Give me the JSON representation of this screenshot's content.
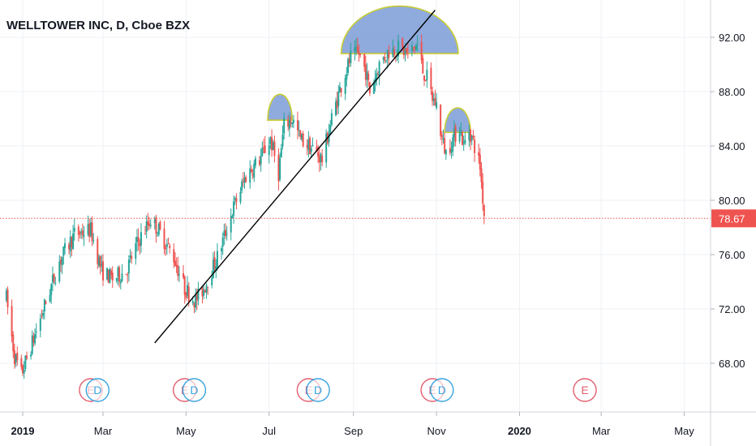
{
  "title": "WELLTOWER INC, D, Cboe BZX",
  "colors": {
    "up": "#26a69a",
    "down": "#ef5350",
    "pattern_fill": "#7b9bd6",
    "pattern_stroke": "#c9cc34",
    "trendline": "#000000",
    "last_price": "#ef5350",
    "earnings": "#e35f6f",
    "dividend": "#3aa3e0",
    "grid": "#eef0f4"
  },
  "chart_data": {
    "type": "candlestick",
    "y_ticks": [
      "68.00",
      "72.00",
      "76.00",
      "80.00",
      "84.00",
      "88.00",
      "92.00"
    ],
    "ylim": [
      64.0,
      95.5
    ],
    "x_ticks": [
      {
        "label": "2019",
        "date": "2019-01-01",
        "bold": true
      },
      {
        "label": "Mar",
        "date": "2019-03-01",
        "bold": false
      },
      {
        "label": "May",
        "date": "2019-05-01",
        "bold": false
      },
      {
        "label": "Jul",
        "date": "2019-07-01",
        "bold": false
      },
      {
        "label": "Sep",
        "date": "2019-09-01",
        "bold": false
      },
      {
        "label": "Nov",
        "date": "2019-11-01",
        "bold": false
      },
      {
        "label": "2020",
        "date": "2020-01-01",
        "bold": true
      },
      {
        "label": "Mar",
        "date": "2020-03-01",
        "bold": false
      },
      {
        "label": "May",
        "date": "2020-05-01",
        "bold": false
      }
    ],
    "price_path": [
      [
        "2018-12-20",
        72.8
      ],
      [
        "2018-12-26",
        68.5
      ],
      [
        "2018-12-31",
        67.2
      ],
      [
        "2019-01-08",
        69.5
      ],
      [
        "2019-01-18",
        72.5
      ],
      [
        "2019-01-28",
        75.5
      ],
      [
        "2019-02-08",
        77.5
      ],
      [
        "2019-02-20",
        77.8
      ],
      [
        "2019-02-28",
        74.8
      ],
      [
        "2019-03-08",
        74.2
      ],
      [
        "2019-03-18",
        74.8
      ],
      [
        "2019-03-26",
        76.8
      ],
      [
        "2019-04-05",
        78.6
      ],
      [
        "2019-04-12",
        77.6
      ],
      [
        "2019-04-22",
        75.8
      ],
      [
        "2019-04-30",
        73.5
      ],
      [
        "2019-05-08",
        72.6
      ],
      [
        "2019-05-14",
        73.5
      ],
      [
        "2019-05-24",
        75.8
      ],
      [
        "2019-06-05",
        79.5
      ],
      [
        "2019-06-14",
        81.8
      ],
      [
        "2019-06-24",
        83.0
      ],
      [
        "2019-07-02",
        84.5
      ],
      [
        "2019-07-08",
        82.0
      ],
      [
        "2019-07-12",
        85.5
      ],
      [
        "2019-07-18",
        86.0
      ],
      [
        "2019-07-24",
        84.5
      ],
      [
        "2019-08-02",
        83.8
      ],
      [
        "2019-08-09",
        83.0
      ],
      [
        "2019-08-16",
        86.0
      ],
      [
        "2019-08-23",
        88.5
      ],
      [
        "2019-08-30",
        90.5
      ],
      [
        "2019-09-05",
        90.8
      ],
      [
        "2019-09-10",
        89.5
      ],
      [
        "2019-09-13",
        88.0
      ],
      [
        "2019-09-20",
        90.0
      ],
      [
        "2019-09-27",
        91.0
      ],
      [
        "2019-10-04",
        91.2
      ],
      [
        "2019-10-11",
        90.8
      ],
      [
        "2019-10-18",
        91.5
      ],
      [
        "2019-10-22",
        89.5
      ],
      [
        "2019-10-25",
        89.0
      ],
      [
        "2019-10-29",
        87.5
      ],
      [
        "2019-11-01",
        87.0
      ],
      [
        "2019-11-05",
        84.5
      ],
      [
        "2019-11-08",
        83.5
      ],
      [
        "2019-11-13",
        84.5
      ],
      [
        "2019-11-18",
        85.5
      ],
      [
        "2019-11-21",
        84.0
      ],
      [
        "2019-11-25",
        85.2
      ],
      [
        "2019-11-29",
        84.0
      ],
      [
        "2019-12-03",
        82.5
      ],
      [
        "2019-12-06",
        79.0
      ]
    ],
    "last_price": "78.67",
    "last_price_value": 78.67,
    "trendline": {
      "from": [
        "2019-04-08",
        69.5
      ],
      "to": [
        "2019-10-31",
        94.0
      ]
    },
    "patterns": [
      {
        "name": "left shoulder",
        "from": [
          "2019-06-30",
          85.9
        ],
        "to": [
          "2019-07-18",
          85.9
        ],
        "peak": 87.8
      },
      {
        "name": "head",
        "from": [
          "2019-08-23",
          90.8
        ],
        "to": [
          "2019-11-17",
          90.8
        ],
        "peak": 94.3
      },
      {
        "name": "right shoulder",
        "from": [
          "2019-11-07",
          85.0
        ],
        "to": [
          "2019-11-26",
          85.0
        ],
        "peak": 86.8
      }
    ],
    "events": [
      {
        "type": "E",
        "date": "2019-02-20"
      },
      {
        "type": "D",
        "date": "2019-02-25"
      },
      {
        "type": "E",
        "date": "2019-04-30"
      },
      {
        "type": "D",
        "date": "2019-05-07"
      },
      {
        "type": "E",
        "date": "2019-07-30"
      },
      {
        "type": "D",
        "date": "2019-08-06"
      },
      {
        "type": "E",
        "date": "2019-10-29"
      },
      {
        "type": "D",
        "date": "2019-11-05"
      },
      {
        "type": "E",
        "date": "2020-02-18"
      }
    ]
  }
}
